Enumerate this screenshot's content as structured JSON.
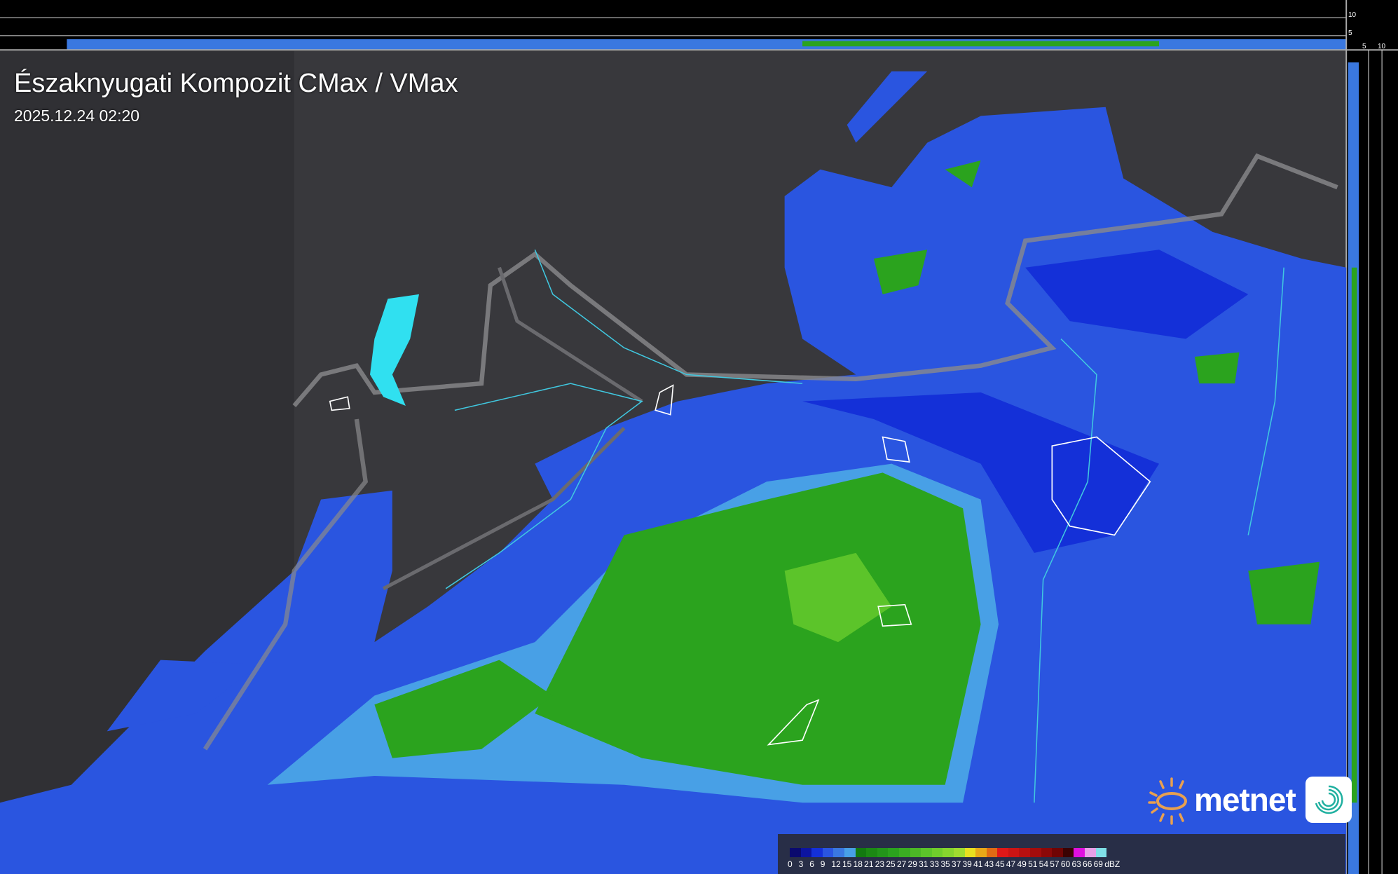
{
  "header": {
    "title": "Északnyugati Kompozit CMax / VMax",
    "timestamp": "2025.12.24 02:20"
  },
  "profile_axes": {
    "top_ticks": [
      "10",
      "5"
    ],
    "right_ticks": [
      "5",
      "10"
    ]
  },
  "legend": {
    "unit": "dBZ",
    "labels": [
      "0",
      "3",
      "6",
      "9",
      "12",
      "15",
      "18",
      "21",
      "23",
      "25",
      "27",
      "29",
      "31",
      "33",
      "35",
      "37",
      "39",
      "41",
      "43",
      "45",
      "47",
      "49",
      "51",
      "54",
      "57",
      "60",
      "63",
      "66",
      "69"
    ],
    "colors": [
      "#0a0a6e",
      "#0c14a0",
      "#1430d8",
      "#2a55e0",
      "#3a78e0",
      "#48a0e6",
      "#137a10",
      "#1c8a14",
      "#23961a",
      "#2ba31e",
      "#3aae22",
      "#4cb826",
      "#5cc42a",
      "#70cc2c",
      "#86d42e",
      "#a0dc30",
      "#e8e020",
      "#e8a818",
      "#e06a14",
      "#e01818",
      "#cc1414",
      "#b81010",
      "#a40c0c",
      "#8c0808",
      "#700404",
      "#3a0202",
      "#e010e0",
      "#e8a0e8",
      "#80e0e8"
    ]
  },
  "brand": {
    "name": "metnet",
    "accent": "#e8a050"
  },
  "colors": {
    "terrain": "#38383c",
    "border": "#8a8a8c",
    "river": "#40c8e0",
    "lake": "#30e0f0"
  }
}
